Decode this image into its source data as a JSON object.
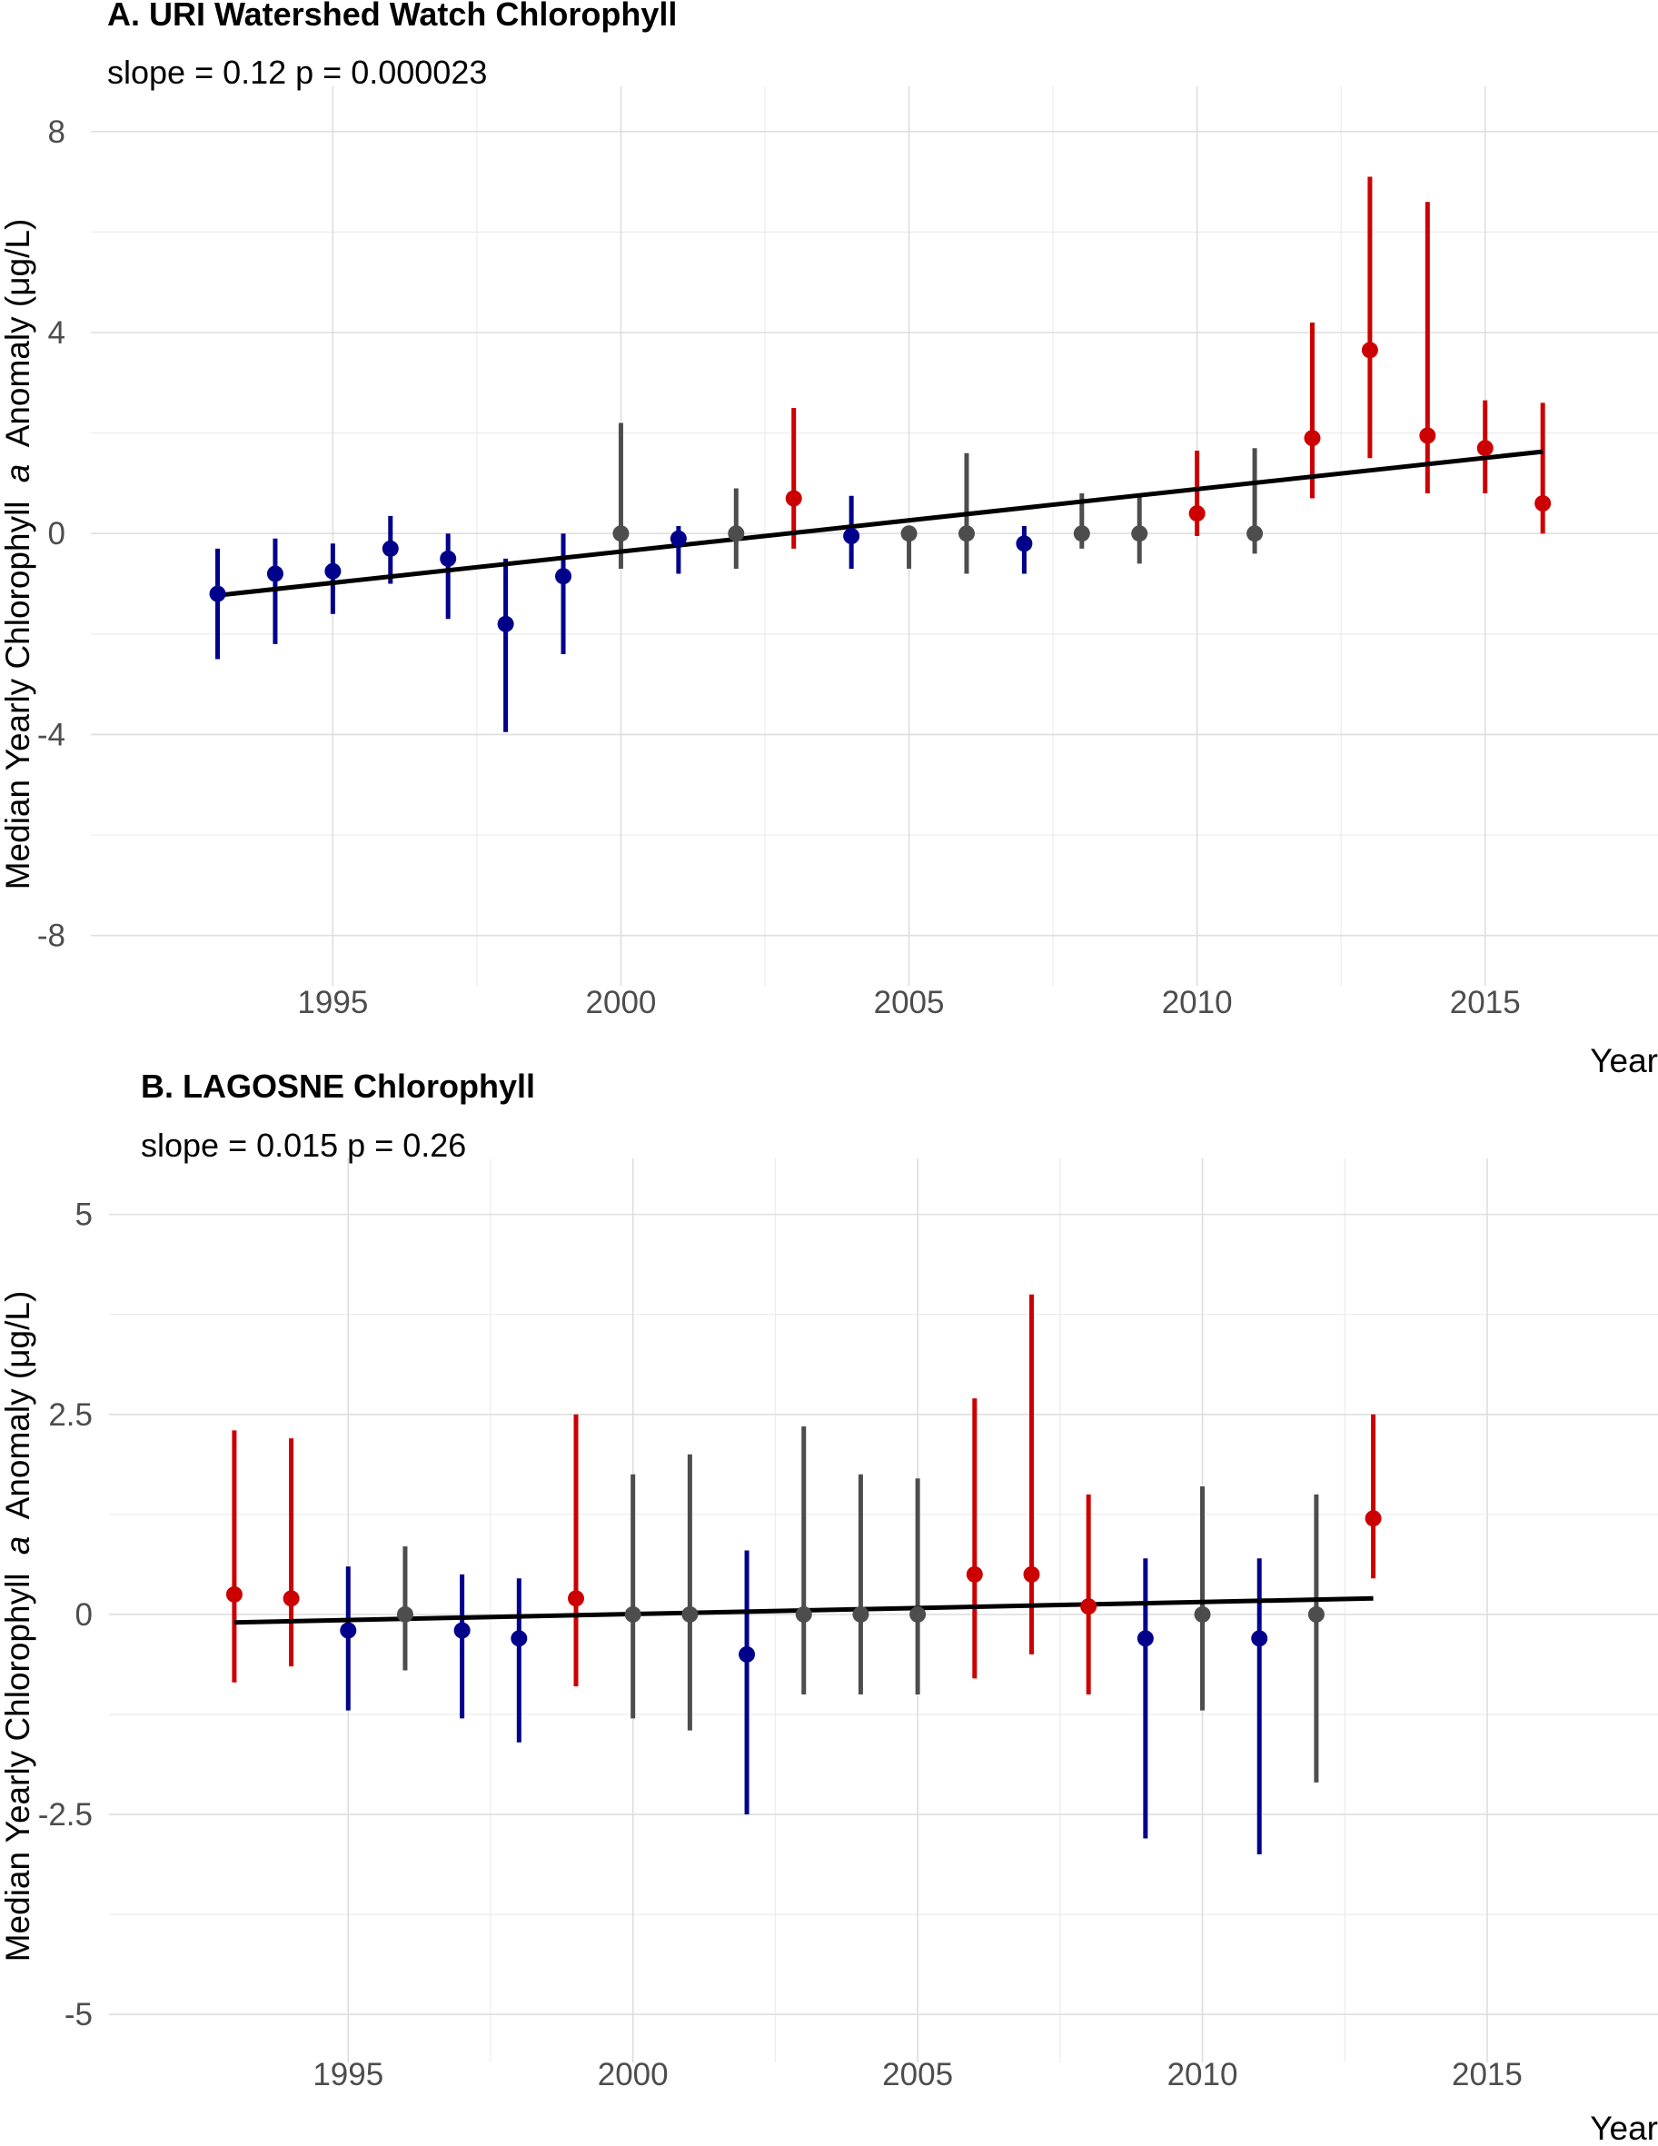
{
  "chart_data": [
    {
      "type": "scatter",
      "title": "A. URI Watershed Watch Chlorophyll",
      "subtitle": "slope = 0.12 p = 0.000023",
      "xlabel": "Year",
      "ylabel_parts": [
        "Median Yearly Chlorophyll",
        "a",
        "Anomaly (μg/L)"
      ],
      "xlim": [
        1990.8,
        2018.0
      ],
      "ylim": [
        -9.0,
        8.9
      ],
      "xticks": [
        1995,
        2000,
        2005,
        2010,
        2015
      ],
      "xtick_labels": [
        "1995",
        "2000",
        "2005",
        "2010",
        "2015"
      ],
      "yticks": [
        -8,
        -4,
        0,
        4,
        8
      ],
      "ytick_labels": [
        "-8",
        "-4",
        "0",
        "4",
        "8"
      ],
      "grid": true,
      "trend": {
        "x": [
          1993,
          2016
        ],
        "y": [
          -1.23,
          1.63
        ]
      },
      "colors": {
        "below": "#00008b",
        "neutral": "#4d4d4d",
        "above": "#cc0000",
        "trend": "#000000"
      },
      "points": [
        {
          "x": 1993,
          "y": -1.2,
          "lo": -2.5,
          "hi": -0.3,
          "group": "below"
        },
        {
          "x": 1994,
          "y": -0.8,
          "lo": -2.2,
          "hi": -0.1,
          "group": "below"
        },
        {
          "x": 1995,
          "y": -0.75,
          "lo": -1.6,
          "hi": -0.2,
          "group": "below"
        },
        {
          "x": 1996,
          "y": -0.3,
          "lo": -1.0,
          "hi": 0.35,
          "group": "below"
        },
        {
          "x": 1997,
          "y": -0.5,
          "lo": -1.7,
          "hi": 0.0,
          "group": "below"
        },
        {
          "x": 1998,
          "y": -1.8,
          "lo": -3.95,
          "hi": -0.5,
          "group": "below"
        },
        {
          "x": 1999,
          "y": -0.85,
          "lo": -2.4,
          "hi": 0.0,
          "group": "below"
        },
        {
          "x": 2000,
          "y": 0.0,
          "lo": -0.7,
          "hi": 2.2,
          "group": "neutral"
        },
        {
          "x": 2001,
          "y": -0.1,
          "lo": -0.8,
          "hi": 0.15,
          "group": "below"
        },
        {
          "x": 2002,
          "y": 0.0,
          "lo": -0.7,
          "hi": 0.9,
          "group": "neutral"
        },
        {
          "x": 2003,
          "y": 0.7,
          "lo": -0.3,
          "hi": 2.5,
          "group": "above"
        },
        {
          "x": 2004,
          "y": -0.05,
          "lo": -0.7,
          "hi": 0.75,
          "group": "below"
        },
        {
          "x": 2005,
          "y": 0.0,
          "lo": -0.7,
          "hi": 0.0,
          "group": "neutral"
        },
        {
          "x": 2006,
          "y": 0.0,
          "lo": -0.8,
          "hi": 1.6,
          "group": "neutral"
        },
        {
          "x": 2007,
          "y": -0.2,
          "lo": -0.8,
          "hi": 0.15,
          "group": "below"
        },
        {
          "x": 2008,
          "y": 0.0,
          "lo": -0.3,
          "hi": 0.8,
          "group": "neutral"
        },
        {
          "x": 2009,
          "y": 0.0,
          "lo": -0.6,
          "hi": 0.75,
          "group": "neutral"
        },
        {
          "x": 2010,
          "y": 0.4,
          "lo": -0.05,
          "hi": 1.65,
          "group": "above"
        },
        {
          "x": 2011,
          "y": 0.0,
          "lo": -0.4,
          "hi": 1.7,
          "group": "neutral"
        },
        {
          "x": 2012,
          "y": 1.9,
          "lo": 0.7,
          "hi": 4.2,
          "group": "above"
        },
        {
          "x": 2013,
          "y": 3.65,
          "lo": 1.5,
          "hi": 7.1,
          "group": "above"
        },
        {
          "x": 2014,
          "y": 1.95,
          "lo": 0.8,
          "hi": 6.6,
          "group": "above"
        },
        {
          "x": 2015,
          "y": 1.7,
          "lo": 0.8,
          "hi": 2.65,
          "group": "above"
        },
        {
          "x": 2016,
          "y": 0.6,
          "lo": 0.0,
          "hi": 2.6,
          "group": "above"
        }
      ]
    },
    {
      "type": "scatter",
      "title": "B. LAGOSNE Chlorophyll",
      "subtitle": "slope = 0.015 p = 0.26",
      "xlabel": "Year",
      "ylabel_parts": [
        "Median Yearly Chlorophyll",
        "a",
        "Anomaly (μg/L)"
      ],
      "xlim": [
        1990.8,
        2018.0
      ],
      "ylim": [
        -5.6,
        5.7
      ],
      "xticks": [
        1995,
        2000,
        2005,
        2010,
        2015
      ],
      "xtick_labels": [
        "1995",
        "2000",
        "2005",
        "2010",
        "2015"
      ],
      "yticks": [
        -5,
        -2.5,
        0,
        2.5,
        5
      ],
      "ytick_labels": [
        "-5",
        "-2.5",
        "0",
        "2.5",
        "5"
      ],
      "grid": true,
      "trend": {
        "x": [
          1993,
          2013
        ],
        "y": [
          -0.1,
          0.2
        ]
      },
      "colors": {
        "below": "#00008b",
        "neutral": "#4d4d4d",
        "above": "#cc0000",
        "trend": "#000000"
      },
      "points": [
        {
          "x": 1993,
          "y": 0.25,
          "lo": -0.85,
          "hi": 2.3,
          "group": "above"
        },
        {
          "x": 1994,
          "y": 0.2,
          "lo": -0.65,
          "hi": 2.2,
          "group": "above"
        },
        {
          "x": 1995,
          "y": -0.2,
          "lo": -1.2,
          "hi": 0.6,
          "group": "below"
        },
        {
          "x": 1996,
          "y": 0.0,
          "lo": -0.7,
          "hi": 0.85,
          "group": "neutral"
        },
        {
          "x": 1997,
          "y": -0.2,
          "lo": -1.3,
          "hi": 0.5,
          "group": "below"
        },
        {
          "x": 1998,
          "y": -0.3,
          "lo": -1.6,
          "hi": 0.45,
          "group": "below"
        },
        {
          "x": 1999,
          "y": 0.2,
          "lo": -0.9,
          "hi": 2.5,
          "group": "above"
        },
        {
          "x": 2000,
          "y": 0.0,
          "lo": -1.3,
          "hi": 1.75,
          "group": "neutral"
        },
        {
          "x": 2001,
          "y": 0.0,
          "lo": -1.45,
          "hi": 2.0,
          "group": "neutral"
        },
        {
          "x": 2002,
          "y": -0.5,
          "lo": -2.5,
          "hi": 0.8,
          "group": "below"
        },
        {
          "x": 2003,
          "y": 0.0,
          "lo": -1.0,
          "hi": 2.35,
          "group": "neutral"
        },
        {
          "x": 2004,
          "y": 0.0,
          "lo": -1.0,
          "hi": 1.75,
          "group": "neutral"
        },
        {
          "x": 2005,
          "y": 0.0,
          "lo": -1.0,
          "hi": 1.7,
          "group": "neutral"
        },
        {
          "x": 2006,
          "y": 0.5,
          "lo": -0.8,
          "hi": 2.7,
          "group": "above"
        },
        {
          "x": 2007,
          "y": 0.5,
          "lo": -0.5,
          "hi": 4.0,
          "group": "above"
        },
        {
          "x": 2008,
          "y": 0.1,
          "lo": -1.0,
          "hi": 1.5,
          "group": "above"
        },
        {
          "x": 2009,
          "y": -0.3,
          "lo": -2.8,
          "hi": 0.7,
          "group": "below"
        },
        {
          "x": 2010,
          "y": 0.0,
          "lo": -1.2,
          "hi": 1.6,
          "group": "neutral"
        },
        {
          "x": 2011,
          "y": -0.3,
          "lo": -3.0,
          "hi": 0.7,
          "group": "below"
        },
        {
          "x": 2012,
          "y": 0.0,
          "lo": -2.1,
          "hi": 1.5,
          "group": "neutral"
        },
        {
          "x": 2013,
          "y": 1.2,
          "lo": 0.45,
          "hi": 2.5,
          "group": "above"
        }
      ]
    }
  ]
}
